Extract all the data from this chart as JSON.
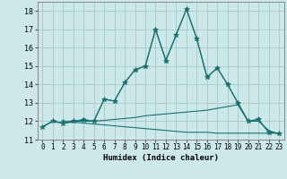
{
  "xlabel": "Humidex (Indice chaleur)",
  "background_color": "#cce8e8",
  "grid_color": "#aacccc",
  "line_color": "#1a7070",
  "xlim": [
    -0.5,
    23.5
  ],
  "ylim": [
    11,
    18.5
  ],
  "yticks": [
    11,
    12,
    13,
    14,
    15,
    16,
    17,
    18
  ],
  "xticks": [
    0,
    1,
    2,
    3,
    4,
    5,
    6,
    7,
    8,
    9,
    10,
    11,
    12,
    13,
    14,
    15,
    16,
    17,
    18,
    19,
    20,
    21,
    22,
    23
  ],
  "series": [
    {
      "x": [
        0,
        1,
        2,
        3,
        4,
        5,
        6,
        7,
        8,
        9,
        10,
        11,
        12,
        13,
        14,
        15,
        16,
        17,
        18,
        19,
        20,
        21,
        22,
        23
      ],
      "y": [
        11.7,
        12.0,
        11.9,
        11.95,
        11.9,
        11.85,
        11.8,
        11.75,
        11.7,
        11.65,
        11.6,
        11.55,
        11.5,
        11.45,
        11.4,
        11.4,
        11.4,
        11.35,
        11.35,
        11.35,
        11.35,
        11.35,
        11.35,
        11.35
      ],
      "marker": false
    },
    {
      "x": [
        0,
        1,
        2,
        3,
        4,
        5,
        6,
        7,
        8,
        9,
        10,
        11,
        12,
        13,
        14,
        15,
        16,
        17,
        18,
        19,
        20,
        21,
        22,
        23
      ],
      "y": [
        11.7,
        12.0,
        11.9,
        12.0,
        12.0,
        12.0,
        12.05,
        12.1,
        12.15,
        12.2,
        12.3,
        12.35,
        12.4,
        12.45,
        12.5,
        12.55,
        12.6,
        12.7,
        12.8,
        12.9,
        12.0,
        12.0,
        11.5,
        11.3
      ],
      "marker": false
    },
    {
      "x": [
        0,
        1,
        2,
        3,
        4,
        5,
        6,
        7,
        8,
        9,
        10,
        11,
        12,
        13,
        14,
        15,
        16,
        17,
        18,
        19,
        20,
        21,
        22,
        23
      ],
      "y": [
        11.7,
        12.0,
        11.9,
        12.0,
        12.05,
        12.0,
        13.2,
        13.1,
        14.1,
        14.8,
        15.0,
        17.0,
        15.3,
        16.7,
        18.1,
        16.5,
        14.4,
        14.9,
        14.0,
        13.0,
        12.0,
        12.1,
        11.4,
        11.35
      ],
      "marker": true
    },
    {
      "x": [
        2,
        3,
        4,
        5,
        6,
        7,
        8,
        9,
        10,
        11,
        12,
        13,
        14,
        15,
        16,
        17,
        18,
        19,
        20,
        21,
        22,
        23
      ],
      "y": [
        12.0,
        12.0,
        12.1,
        12.0,
        13.2,
        13.1,
        14.1,
        14.8,
        15.0,
        17.0,
        15.3,
        16.7,
        18.1,
        16.5,
        14.4,
        14.9,
        14.0,
        13.0,
        12.0,
        12.1,
        11.4,
        11.35
      ],
      "marker": true
    }
  ]
}
